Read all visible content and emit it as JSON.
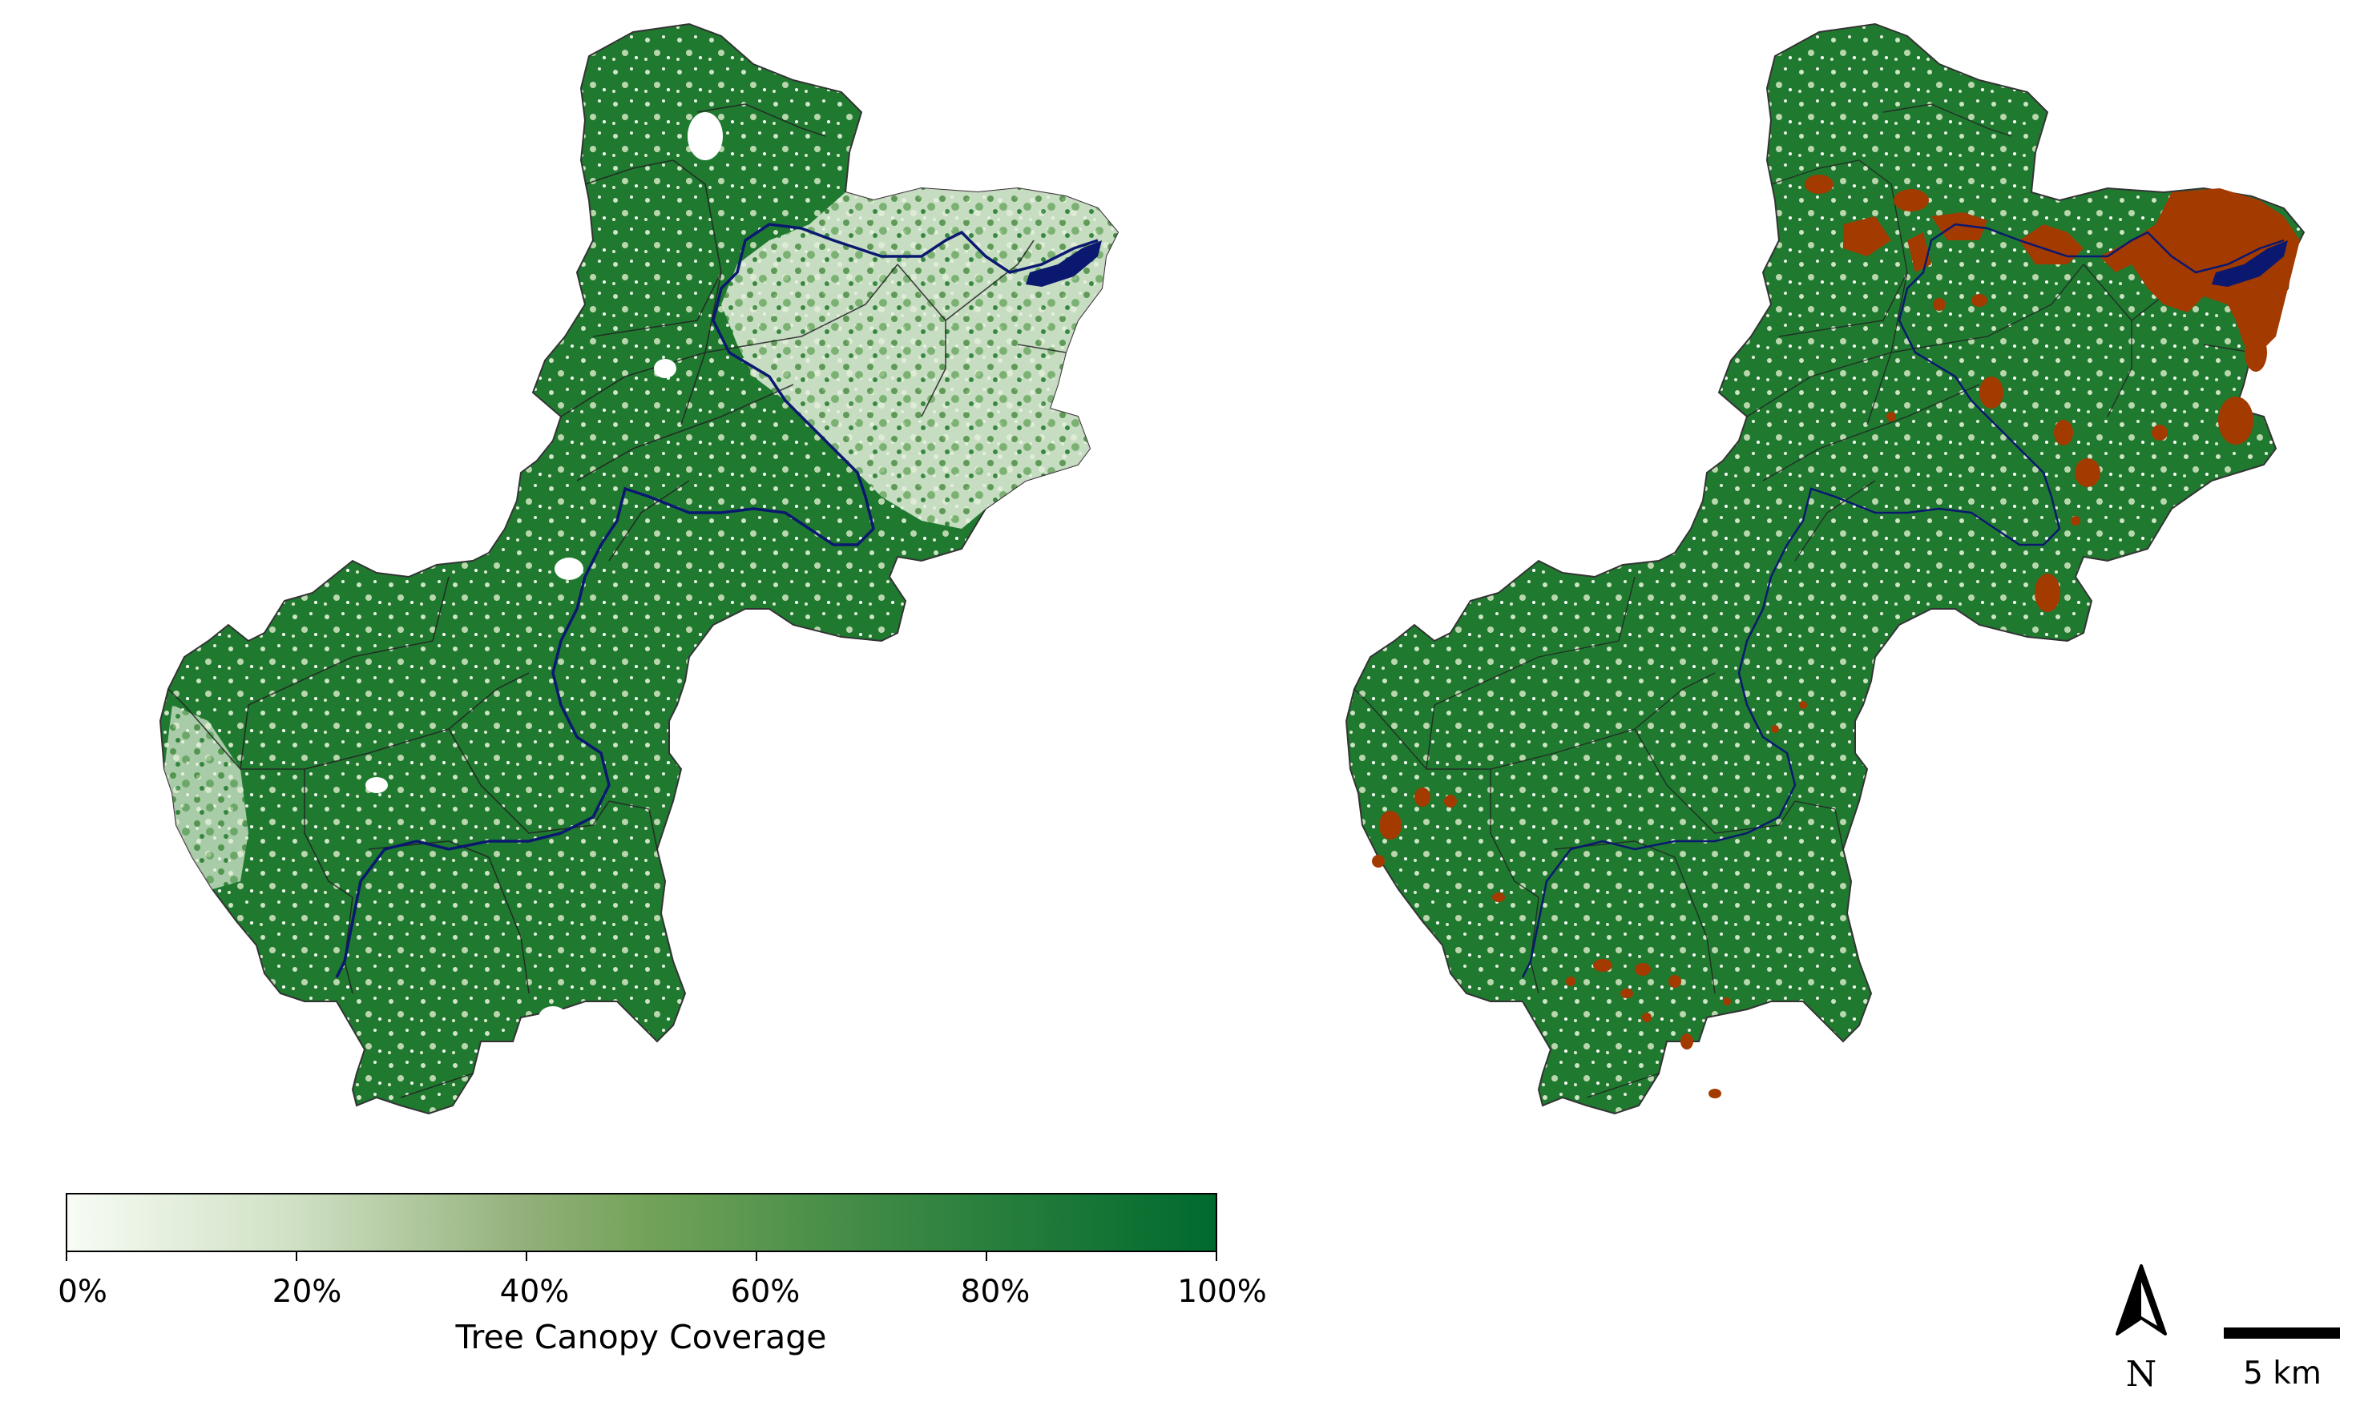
{
  "colorbar": {
    "title": "Tree Canopy Coverage",
    "ticks": [
      "0%",
      "20%",
      "40%",
      "60%",
      "80%",
      "100%"
    ],
    "color_low": "#f7fcf5",
    "color_mid": "#74a35a",
    "color_high": "#006a2e"
  },
  "north_arrow": {
    "label": "N"
  },
  "scale_bar": {
    "label": "5 km"
  },
  "colors": {
    "canopy_green": "#1f7a30",
    "canopy_light": "#e9f2e4",
    "hotspot": "#a33a00",
    "river": "#0b1870",
    "boundary": "#333333"
  }
}
